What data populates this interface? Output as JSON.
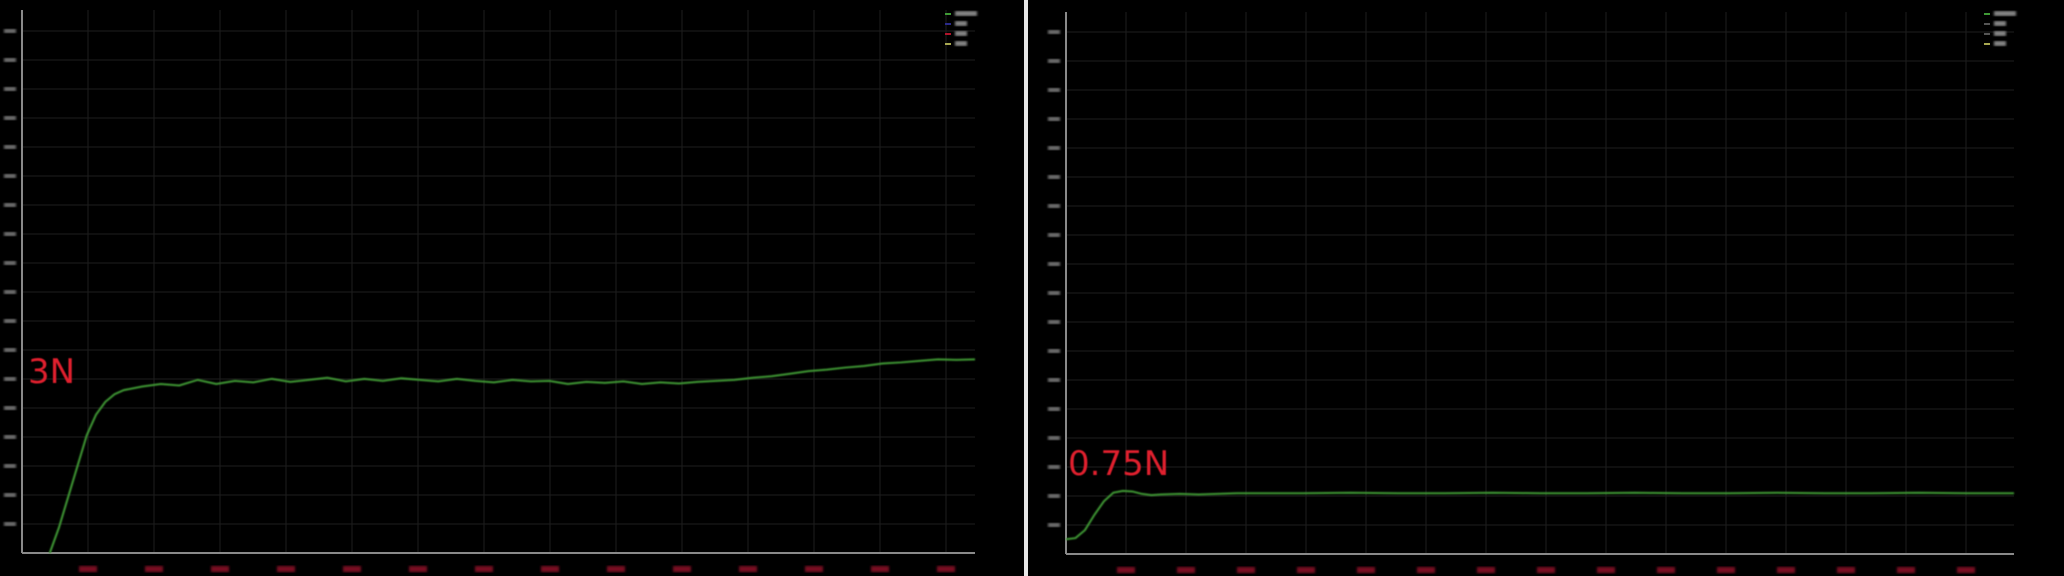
{
  "colors": {
    "background": "#000000",
    "grid": "#1e1e1e",
    "axis": "#8a8a8a",
    "force_curve": "#3f9a35",
    "target_line": "#b0142a",
    "baseline": "#a8a850",
    "annotation": "#e0202e",
    "tick_label_x": "#7a1020",
    "tick_label_y": "#777777"
  },
  "chart_data": [
    {
      "type": "line",
      "annotation": "3N",
      "ylim": [
        0,
        10.6
      ],
      "xlim": [
        -3,
        100
      ],
      "grid": true,
      "legend_placement": "top-right",
      "legend_colors": [
        "#3f9a35",
        "#2a2a8a",
        "#b0142a",
        "#a8a850"
      ],
      "series": [
        {
          "color": "#3f9a35",
          "x": [
            0,
            1,
            2,
            3,
            4,
            5,
            6,
            7,
            8,
            10,
            12,
            14,
            16,
            18,
            20,
            22,
            24,
            26,
            28,
            30,
            32,
            34,
            36,
            38,
            40,
            42,
            44,
            46,
            48,
            50,
            52,
            54,
            56,
            58,
            60,
            62,
            64,
            66,
            68,
            70,
            72,
            74,
            76,
            78,
            80,
            82,
            84,
            86,
            88,
            90,
            92,
            94,
            96,
            98,
            100
          ],
          "y": [
            0,
            0.5,
            1.1,
            1.7,
            2.3,
            2.7,
            2.95,
            3.1,
            3.18,
            3.25,
            3.3,
            3.27,
            3.38,
            3.3,
            3.36,
            3.33,
            3.4,
            3.34,
            3.38,
            3.42,
            3.35,
            3.4,
            3.36,
            3.41,
            3.38,
            3.35,
            3.4,
            3.36,
            3.33,
            3.38,
            3.35,
            3.36,
            3.3,
            3.34,
            3.32,
            3.35,
            3.3,
            3.33,
            3.31,
            3.34,
            3.36,
            3.38,
            3.42,
            3.45,
            3.5,
            3.55,
            3.58,
            3.62,
            3.65,
            3.7,
            3.72,
            3.75,
            3.78,
            3.77,
            3.78
          ]
        },
        {
          "color": "#b0142a",
          "x": [
            -3,
            100
          ],
          "y": [
            3,
            3
          ]
        }
      ]
    },
    {
      "type": "line",
      "annotation": "0.75N",
      "ylim": [
        -0.24,
        8.6
      ],
      "xlim": [
        0,
        100
      ],
      "grid": true,
      "legend_placement": "top-right",
      "legend_colors": [
        "#3f9a35",
        "#555555",
        "#555555",
        "#a8a850"
      ],
      "series": [
        {
          "color": "#3f9a35",
          "x": [
            0,
            1,
            2,
            3,
            4,
            5,
            6,
            7,
            8,
            9,
            10,
            12,
            14,
            16,
            18,
            20,
            25,
            30,
            35,
            40,
            45,
            50,
            55,
            60,
            65,
            70,
            75,
            80,
            85,
            90,
            95,
            100
          ],
          "y": [
            0,
            0.02,
            0.15,
            0.4,
            0.62,
            0.76,
            0.79,
            0.78,
            0.74,
            0.72,
            0.73,
            0.74,
            0.73,
            0.74,
            0.75,
            0.75,
            0.75,
            0.76,
            0.75,
            0.75,
            0.76,
            0.75,
            0.75,
            0.76,
            0.75,
            0.75,
            0.76,
            0.75,
            0.75,
            0.76,
            0.75,
            0.75
          ]
        },
        {
          "color": "#b0142a",
          "x": [
            0,
            100
          ],
          "y": [
            0.75,
            0.75
          ]
        },
        {
          "color": "#a8a850",
          "x": [
            0,
            100
          ],
          "y": [
            0,
            0
          ]
        }
      ]
    }
  ]
}
